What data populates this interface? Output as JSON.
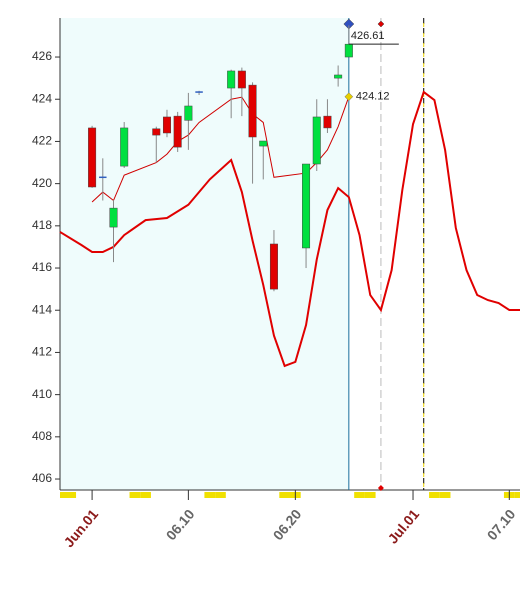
{
  "chart_data": {
    "type": "candlestick",
    "x": [
      "06.01",
      "06.02",
      "06.03",
      "06.04",
      "06.07",
      "06.08",
      "06.09",
      "06.10",
      "06.11",
      "06.14",
      "06.15",
      "06.16",
      "06.17",
      "06.18",
      "06.21",
      "06.22",
      "06.23",
      "06.24",
      "06.25"
    ],
    "open": [
      422.64,
      420.3,
      417.94,
      420.83,
      422.6,
      423.16,
      423.2,
      423.0,
      424.34,
      424.53,
      425.34,
      424.67,
      421.78,
      417.14,
      416.95,
      420.93,
      423.2,
      425.0,
      426.0
    ],
    "high": [
      422.74,
      421.2,
      419.22,
      422.92,
      422.7,
      423.5,
      423.4,
      424.3,
      424.4,
      425.4,
      425.5,
      424.8,
      422.02,
      417.8,
      420.93,
      424.0,
      424.0,
      425.6,
      427.5
    ],
    "low": [
      419.8,
      419.2,
      416.28,
      420.74,
      421.0,
      422.2,
      421.5,
      421.6,
      424.2,
      423.1,
      423.2,
      420.0,
      420.2,
      414.9,
      416.0,
      420.6,
      422.4,
      424.6,
      426.0
    ],
    "close": [
      419.84,
      420.3,
      418.84,
      422.64,
      422.3,
      422.4,
      421.73,
      423.68,
      424.34,
      425.34,
      424.53,
      422.21,
      422.02,
      415.0,
      420.93,
      423.16,
      422.64,
      425.15,
      426.61
    ],
    "up_color": "#00e040",
    "down_color": "#e00000",
    "doji_color": "#3060c0",
    "lines": [
      {
        "color": "#d00000",
        "width": 1,
        "x": [
          "06.01",
          "06.02",
          "06.03",
          "06.04",
          "06.07",
          "06.08",
          "06.09",
          "06.10",
          "06.11",
          "06.14",
          "06.15",
          "06.16",
          "06.17",
          "06.18",
          "06.21",
          "06.22",
          "06.23",
          "06.24",
          "06.25"
        ],
        "values": [
          419.13,
          419.6,
          419.2,
          420.4,
          421.0,
          421.4,
          422.0,
          422.3,
          422.9,
          424.0,
          424.1,
          423.3,
          422.9,
          420.3,
          420.5,
          421.0,
          421.6,
          422.7,
          424.12
        ]
      },
      {
        "color": "#e00000",
        "width": 2,
        "x": [
          "05.29",
          "05.31",
          "06.01",
          "06.02",
          "06.03",
          "06.04",
          "06.06",
          "06.08",
          "06.10",
          "06.12",
          "06.14",
          "06.15",
          "06.16",
          "06.17",
          "06.18",
          "06.19",
          "06.20",
          "06.21",
          "06.22",
          "06.23",
          "06.24",
          "06.25",
          "06.26",
          "06.27",
          "06.28",
          "06.29",
          "06.30",
          "07.01",
          "07.02",
          "07.03",
          "07.04",
          "07.05",
          "07.06",
          "07.07",
          "07.08",
          "07.09",
          "07.10",
          "07.11"
        ],
        "values": [
          417.71,
          417.09,
          416.76,
          416.76,
          417.0,
          417.56,
          418.27,
          418.37,
          419.0,
          420.2,
          421.12,
          419.6,
          417.3,
          415.2,
          412.8,
          411.36,
          411.55,
          413.3,
          416.4,
          418.75,
          419.79,
          419.36,
          417.56,
          414.72,
          414.01,
          415.9,
          419.7,
          422.82,
          424.34,
          423.96,
          421.59,
          417.9,
          415.9,
          414.72,
          414.48,
          414.34,
          414.01,
          414.01
        ]
      }
    ],
    "xlim": [
      "05.29",
      "07.11"
    ],
    "xticks": [
      {
        "value": "06.01",
        "label": "Jun.01"
      },
      "06.10",
      "06.20",
      {
        "value": "07.01",
        "label": "Jul.01"
      },
      "07.10"
    ],
    "ylim": [
      405.48,
      427.85
    ],
    "yticks": [
      406,
      408,
      410,
      412,
      414,
      416,
      418,
      420,
      422,
      424,
      426
    ],
    "shade_until": "06.25",
    "shade_color": "#effcfc",
    "weekend_marks": [
      "05.29",
      "05.30",
      "06.05",
      "06.06",
      "06.12",
      "06.13",
      "06.19",
      "06.20",
      "06.26",
      "06.27",
      "07.03",
      "07.04",
      "07.10",
      "07.11"
    ],
    "vlines": [
      {
        "x": "06.25",
        "color": "#1a6f9c",
        "dash": "none",
        "marker": "#3050c0"
      },
      {
        "x": "06.28",
        "color": "#bbbbbb",
        "dash": "8 4",
        "marker": "#e00000"
      },
      {
        "x": "07.02",
        "color": "#000000",
        "dash": "6 4",
        "marker": "none"
      }
    ],
    "annotations": [
      {
        "x": "06.25",
        "y": 426.61,
        "marker": "none"
      },
      {
        "x": "06.25",
        "y": 424.12,
        "marker": "#e8d000"
      }
    ]
  }
}
